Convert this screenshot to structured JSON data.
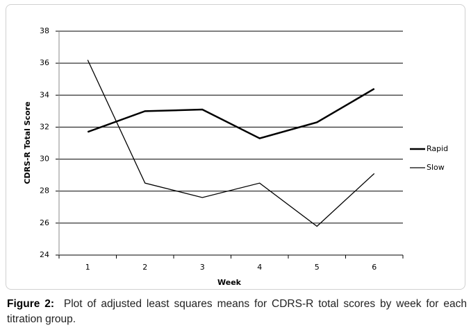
{
  "chart_data": {
    "type": "line",
    "categories": [
      "1",
      "2",
      "3",
      "4",
      "5",
      "6"
    ],
    "series": [
      {
        "name": "Rapid",
        "color": "#000000",
        "values": [
          31.7,
          33.0,
          33.1,
          31.3,
          32.3,
          34.4
        ]
      },
      {
        "name": "Slow",
        "color": "#000000",
        "values": [
          36.2,
          28.5,
          27.6,
          28.5,
          25.8,
          29.1
        ]
      }
    ],
    "xlabel": "Week",
    "ylabel": "CDRS-R Total Score",
    "ylim": [
      24,
      38
    ],
    "yticks": [
      24,
      26,
      28,
      30,
      32,
      34,
      36,
      38
    ],
    "grid": true,
    "legend": "right"
  },
  "caption": {
    "label": "Figure 2:",
    "text": "Plot of adjusted least squares means for CDRS-R total scores by week for each titration group."
  }
}
